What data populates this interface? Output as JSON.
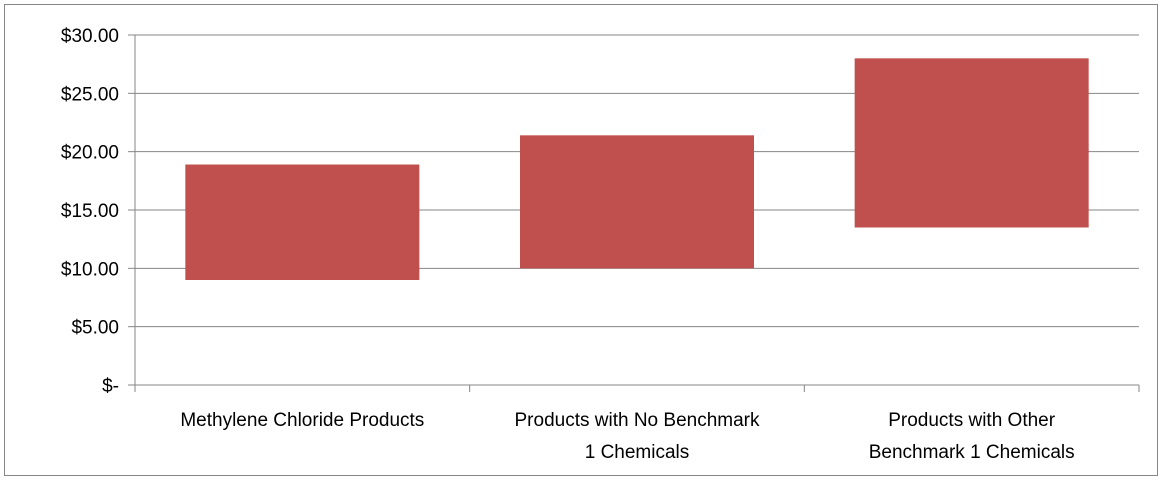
{
  "chart_data": {
    "type": "bar",
    "subtype": "floating-range",
    "categories": [
      [
        "Methylene Chloride Products"
      ],
      [
        "Products with No Benchmark",
        "1 Chemicals"
      ],
      [
        "Products with Other",
        "Benchmark 1 Chemicals"
      ]
    ],
    "series": [
      {
        "low": [
          9.0,
          10.0,
          13.5
        ],
        "high": [
          18.9,
          21.4,
          28.0
        ]
      }
    ],
    "ylim": [
      0,
      30
    ],
    "yticks": [
      0,
      5,
      10,
      15,
      20,
      25,
      30
    ],
    "ytick_labels": [
      "$-",
      "$5.00",
      "$10.00",
      "$15.00",
      "$20.00",
      "$25.00",
      "$30.00"
    ],
    "grid": true,
    "legend": "none",
    "bar_color": "#C0504D",
    "grid_color": "#868686",
    "title": "",
    "xlabel": "",
    "ylabel": ""
  }
}
